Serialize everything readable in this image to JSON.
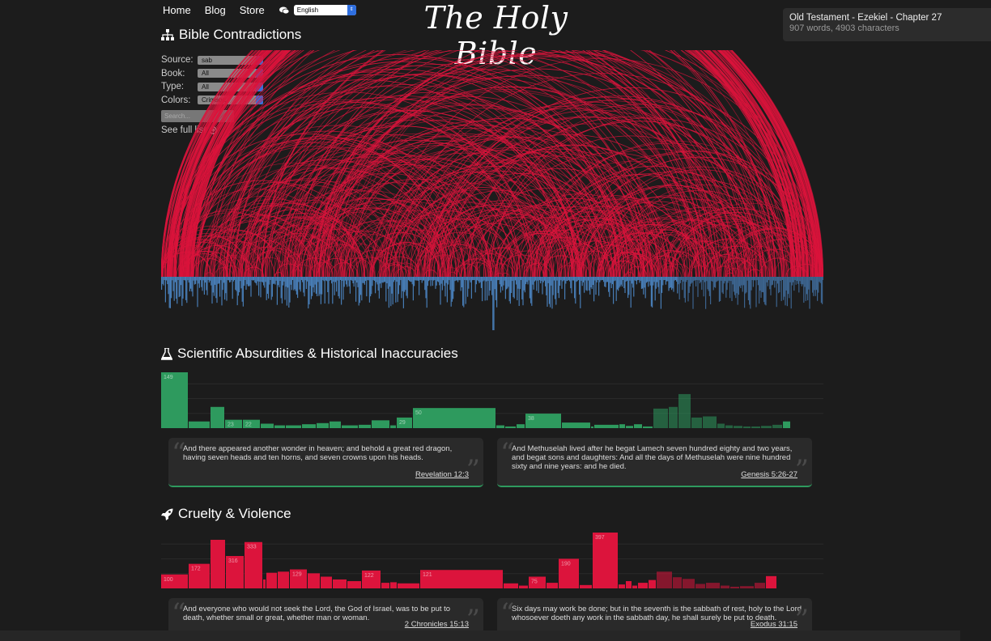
{
  "nav": {
    "home": "Home",
    "blog": "Blog",
    "store": "Store",
    "language": "English"
  },
  "brand": "The Holy Bible",
  "info": {
    "location": "Old Testament - Ezekiel - Chapter 27",
    "stats": "907 words, 4903 characters"
  },
  "contradictions": {
    "title": "Bible Contradictions",
    "source_label": "Source:",
    "source_value": "sab",
    "book_label": "Book:",
    "book_value": "All",
    "type_label": "Type:",
    "type_value": "All",
    "colors_label": "Colors:",
    "colors_value": "Crimson",
    "search_placeholder": "Search...",
    "full_list": "See full list"
  },
  "scientific": {
    "title": "Scientific Absurdities & Historical Inaccuracies",
    "bar_labels": [
      "149",
      "23",
      "22",
      "29",
      "50",
      "38"
    ],
    "quote1": {
      "text": "And there appeared another wonder in heaven; and behold a great red dragon, having seven heads and ten horns, and seven crowns upon his heads.",
      "ref": "Revelation 12:3"
    },
    "quote2": {
      "text": "And Methuselah lived after he begat Lamech seven hundred eighty and two years, and begat sons and daughters: And all the days of Methuselah were nine hundred sixty and nine years: and he died.",
      "ref": "Genesis 5:26-27"
    }
  },
  "cruelty": {
    "title": "Cruelty & Violence",
    "bar_labels": [
      "100",
      "172",
      "316",
      "333",
      "129",
      "122",
      "121",
      "75",
      "190",
      "397"
    ],
    "quote1": {
      "text": "And everyone who would not seek the Lord, the God of Israel, was to be put to death, whether small or great, whether man or woman.",
      "ref": "2 Chronicles 15:13"
    },
    "quote2": {
      "text": "Six days may work be done; but in the seventh is the sabbath of rest, holy to the Lord whosoever doeth any work in the sabbath day, he shall surely be put to death.",
      "ref": "Exodus 31:15"
    }
  },
  "colors": {
    "crimson": "#dc143c",
    "blue": "#4a82bd",
    "green": "#2e9a5e"
  }
}
